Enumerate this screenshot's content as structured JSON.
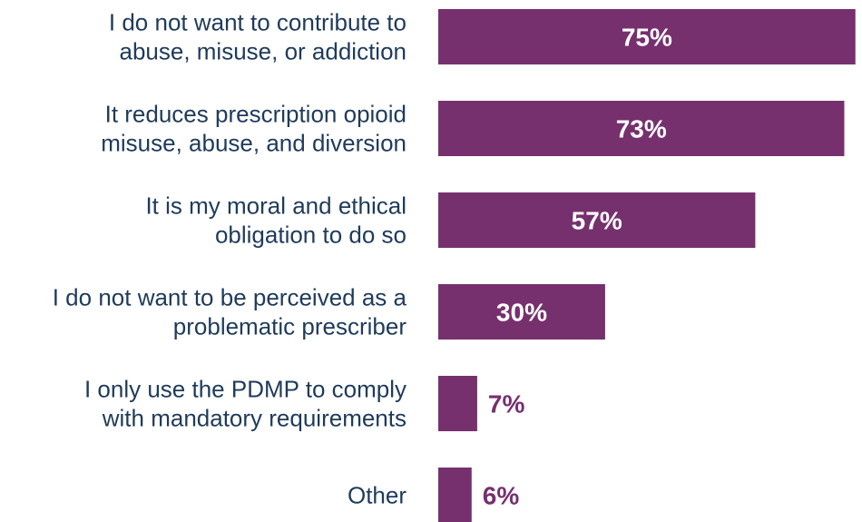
{
  "chart_data": {
    "type": "bar",
    "orientation": "horizontal",
    "categories": [
      [
        "I do not want to contribute to",
        "abuse, misuse, or addiction"
      ],
      [
        "It reduces prescription opioid",
        "misuse, abuse, and diversion"
      ],
      [
        "It is my moral and ethical",
        "obligation to do so"
      ],
      [
        "I do not want to be perceived as a",
        "problematic prescriber"
      ],
      [
        "I only use the PDMP to comply",
        "with mandatory requirements"
      ],
      [
        "Other"
      ]
    ],
    "values": [
      75,
      73,
      57,
      30,
      7,
      6
    ],
    "value_labels": [
      "75%",
      "73%",
      "57%",
      "30%",
      "7%",
      "6%"
    ],
    "unit": "%",
    "xlim": [
      0,
      80
    ],
    "grid": false,
    "legend": "none"
  },
  "colors": {
    "bar": "#76306e",
    "value_inside": "#ffffff",
    "value_outside": "#76306e",
    "category_text": "#1f3b5a"
  }
}
